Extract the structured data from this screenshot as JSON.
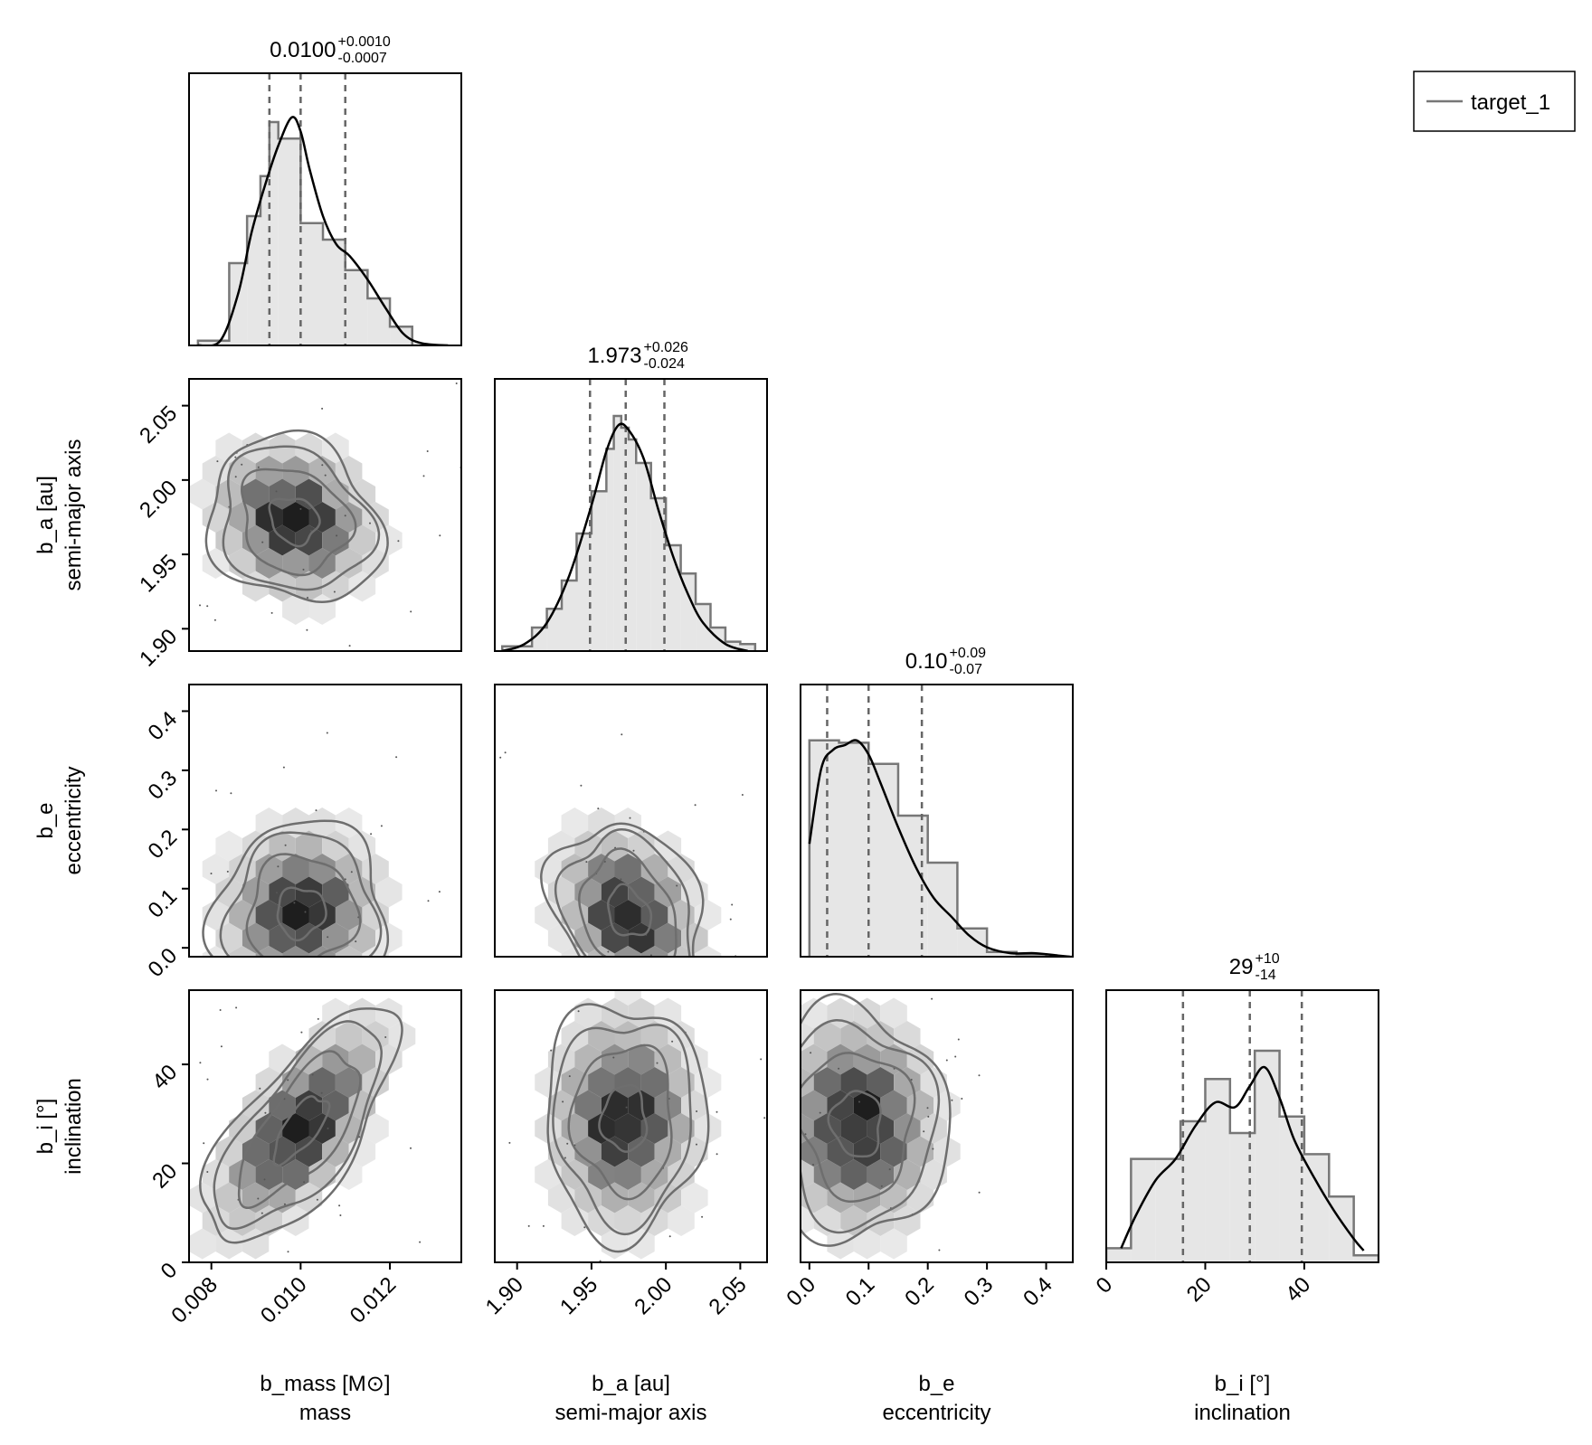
{
  "legend": {
    "series_name": "target_1",
    "placement": "top-right"
  },
  "chart_data": {
    "type": "corner",
    "colors": {
      "hist_fill": "#e6e6e6",
      "hist_step": "#777777",
      "kde": "#000000",
      "quantile_line": "#666666",
      "contour": "#6e6e6e",
      "hex_dark": "#1e1e1e",
      "frame": "#000000"
    },
    "params": [
      {
        "key": "mass",
        "label": "b_mass [M⊙]",
        "sublabel": "mass",
        "ylabel": "",
        "ysublabel": "",
        "range": [
          0.0075,
          0.0136
        ],
        "ticks": [
          0.008,
          0.01,
          0.012
        ],
        "tick_labels": [
          "0.008",
          "0.010",
          "0.012"
        ],
        "summary": {
          "median": "0.0100",
          "plus": "+0.0010",
          "minus": "-0.0007"
        },
        "quantiles": [
          0.0093,
          0.01,
          0.011
        ],
        "hist": {
          "edges": [
            0.0077,
            0.0084,
            0.0088,
            0.0091,
            0.0093,
            0.0095,
            0.01,
            0.0105,
            0.011,
            0.0115,
            0.012,
            0.0125,
            0.0133
          ],
          "counts": [
            0.02,
            0.35,
            0.55,
            0.72,
            0.95,
            0.88,
            0.52,
            0.45,
            0.32,
            0.2,
            0.08,
            0.0
          ]
        },
        "kde": {
          "x": [
            0.0077,
            0.0082,
            0.0086,
            0.0089,
            0.0092,
            0.0095,
            0.0098,
            0.01,
            0.0102,
            0.0105,
            0.0108,
            0.0111,
            0.0115,
            0.0119,
            0.0123,
            0.0127,
            0.0133
          ],
          "y": [
            0.0,
            0.02,
            0.22,
            0.48,
            0.68,
            0.85,
            0.97,
            0.91,
            0.75,
            0.55,
            0.43,
            0.38,
            0.28,
            0.16,
            0.05,
            0.01,
            0.0
          ]
        }
      },
      {
        "key": "a",
        "label": "b_a [au]",
        "sublabel": "semi-major axis",
        "ylabel": "b_a [au]",
        "ysublabel": "semi-major axis",
        "range": [
          1.885,
          2.068
        ],
        "ticks": [
          1.9,
          1.95,
          2.0,
          2.05
        ],
        "tick_labels": [
          "1.90",
          "1.95",
          "2.00",
          "2.05"
        ],
        "summary": {
          "median": "1.973",
          "plus": "+0.026",
          "minus": "-0.024"
        },
        "quantiles": [
          1.949,
          1.973,
          1.999
        ],
        "hist": {
          "edges": [
            1.89,
            1.91,
            1.92,
            1.93,
            1.94,
            1.95,
            1.96,
            1.965,
            1.97,
            1.975,
            1.98,
            1.99,
            2.0,
            2.01,
            2.02,
            2.03,
            2.04,
            2.05,
            2.06
          ],
          "counts": [
            0.02,
            0.1,
            0.18,
            0.3,
            0.5,
            0.68,
            0.86,
            1.0,
            0.95,
            0.9,
            0.8,
            0.65,
            0.45,
            0.33,
            0.2,
            0.1,
            0.04,
            0.03
          ]
        },
        "kde": {
          "x": [
            1.89,
            1.905,
            1.92,
            1.935,
            1.95,
            1.96,
            1.968,
            1.975,
            1.985,
            1.995,
            2.005,
            2.015,
            2.025,
            2.04,
            2.055
          ],
          "y": [
            0.0,
            0.03,
            0.12,
            0.32,
            0.62,
            0.85,
            0.96,
            0.94,
            0.82,
            0.6,
            0.4,
            0.24,
            0.12,
            0.03,
            0.0
          ]
        }
      },
      {
        "key": "e",
        "label": "b_e",
        "sublabel": "eccentricity",
        "ylabel": "b_e",
        "ysublabel": "eccentricity",
        "range": [
          -0.015,
          0.445
        ],
        "ticks": [
          0.0,
          0.1,
          0.2,
          0.3,
          0.4
        ],
        "tick_labels": [
          "0.0",
          "0.1",
          "0.2",
          "0.3",
          "0.4"
        ],
        "summary": {
          "median": "0.10",
          "plus": "+0.09",
          "minus": "-0.07"
        },
        "quantiles": [
          0.03,
          0.1,
          0.19
        ],
        "hist": {
          "edges": [
            0.0,
            0.05,
            0.1,
            0.15,
            0.2,
            0.25,
            0.3,
            0.35,
            0.4,
            0.445
          ],
          "counts": [
            0.92,
            0.91,
            0.82,
            0.6,
            0.4,
            0.12,
            0.02,
            0.01,
            0.0
          ]
        },
        "kde": {
          "x": [
            0.0,
            0.02,
            0.04,
            0.06,
            0.08,
            0.1,
            0.12,
            0.15,
            0.18,
            0.21,
            0.24,
            0.27,
            0.3,
            0.34,
            0.38,
            0.42,
            0.44
          ],
          "y": [
            0.48,
            0.8,
            0.88,
            0.9,
            0.92,
            0.86,
            0.74,
            0.55,
            0.38,
            0.25,
            0.17,
            0.09,
            0.04,
            0.015,
            0.015,
            0.005,
            0.0
          ]
        }
      },
      {
        "key": "i",
        "label": "b_i [°]",
        "sublabel": "inclination",
        "ylabel": "b_i [°]",
        "ysublabel": "inclination",
        "range": [
          0.0,
          55.0
        ],
        "ticks": [
          0,
          20,
          40
        ],
        "tick_labels": [
          "0",
          "20",
          "40"
        ],
        "summary": {
          "median": "29",
          "plus": "+10",
          "minus": "-14"
        },
        "quantiles": [
          15.5,
          29.0,
          39.5
        ],
        "hist": {
          "edges": [
            0,
            5,
            10,
            15,
            20,
            25,
            30,
            35,
            40,
            45,
            50,
            55
          ],
          "counts": [
            0.06,
            0.44,
            0.44,
            0.6,
            0.78,
            0.55,
            0.9,
            0.62,
            0.46,
            0.28,
            0.03
          ]
        },
        "kde": {
          "x": [
            3,
            6,
            10,
            14,
            18,
            22,
            26,
            29,
            32,
            35,
            38,
            42,
            46,
            50,
            52
          ],
          "y": [
            0.06,
            0.2,
            0.35,
            0.44,
            0.58,
            0.68,
            0.66,
            0.75,
            0.83,
            0.7,
            0.52,
            0.36,
            0.22,
            0.1,
            0.05
          ]
        }
      }
    ],
    "pairs": [
      {
        "x": "mass",
        "y": "a",
        "mode": [
          0.00985,
          1.973
        ],
        "spread": [
          0.0009,
          0.026
        ],
        "corr": -0.15
      },
      {
        "x": "mass",
        "y": "e",
        "mode": [
          0.01,
          0.06
        ],
        "spread": [
          0.0009,
          0.07
        ],
        "corr": 0.05
      },
      {
        "x": "a",
        "y": "e",
        "mode": [
          1.975,
          0.06
        ],
        "spread": [
          0.024,
          0.07
        ],
        "corr": -0.25
      },
      {
        "x": "mass",
        "y": "i",
        "mode": [
          0.01,
          27.0
        ],
        "spread": [
          0.001,
          11.0
        ],
        "corr": 0.7
      },
      {
        "x": "a",
        "y": "i",
        "mode": [
          1.972,
          29.0
        ],
        "spread": [
          0.025,
          11.0
        ],
        "corr": 0.0
      },
      {
        "x": "e",
        "y": "i",
        "mode": [
          0.08,
          28.0
        ],
        "spread": [
          0.07,
          11.0
        ],
        "corr": -0.05
      }
    ]
  }
}
